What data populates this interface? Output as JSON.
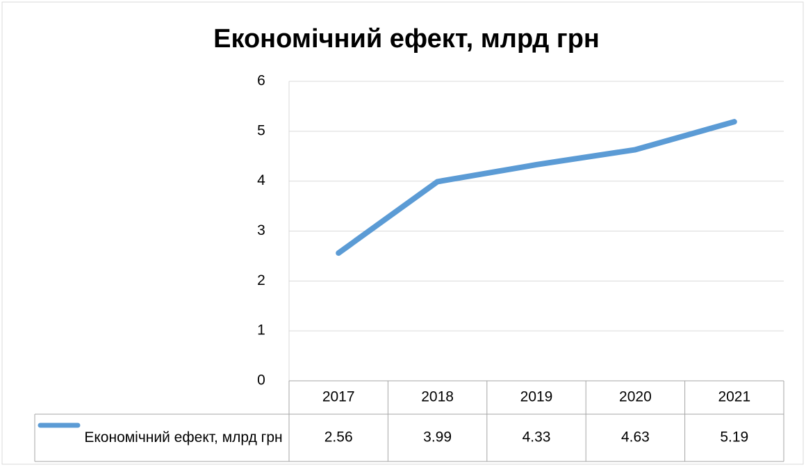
{
  "chart_data": {
    "type": "line",
    "title": "Економічний ефект, млрд грн",
    "categories": [
      "2017",
      "2018",
      "2019",
      "2020",
      "2021"
    ],
    "series": [
      {
        "name": "Економічний ефект, млрд грн",
        "color": "#5b9bd5",
        "values": [
          2.56,
          3.99,
          4.33,
          4.63,
          5.19
        ]
      }
    ],
    "ylim": [
      0,
      6
    ],
    "yticks": [
      0,
      1,
      2,
      3,
      4,
      5,
      6
    ],
    "grid": true,
    "data_table": true
  }
}
